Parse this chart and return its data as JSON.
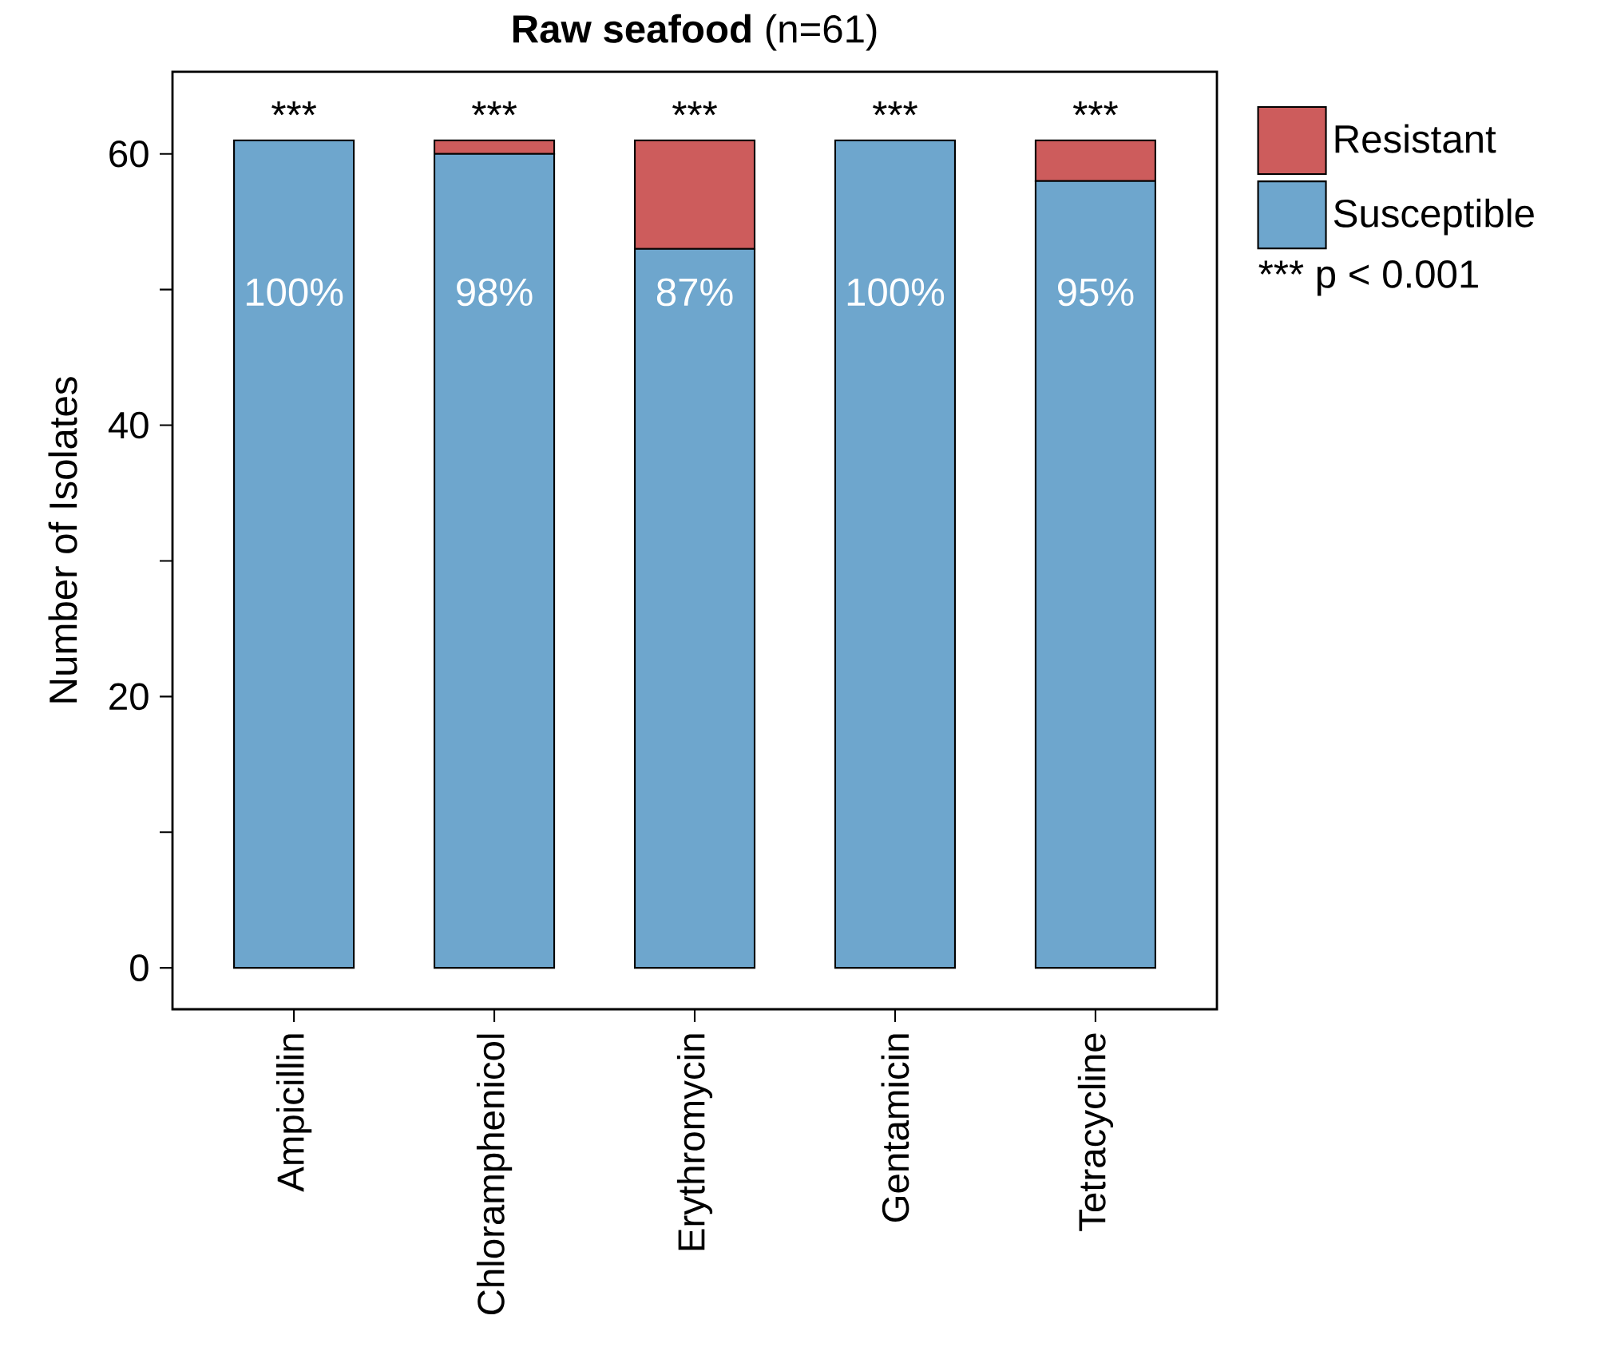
{
  "chart_data": {
    "type": "bar",
    "stacked": true,
    "title": "**Raw seafood**  (n=61)",
    "ylabel": "Number of Isolates",
    "categories": [
      "Ampicillin",
      "Chloramphenicol",
      "Erythromycin",
      "Gentamicin",
      "Tetracycline"
    ],
    "series": [
      {
        "name": "Susceptible",
        "color": "#6ea6cd",
        "values": [
          61,
          60,
          53,
          61,
          58
        ]
      },
      {
        "name": "Resistant",
        "color": "#cd5c5c",
        "values": [
          0,
          1,
          8,
          0,
          3
        ]
      }
    ],
    "ylim": [
      -3.05,
      66.05
    ],
    "yticks": [
      0,
      {
        "value": 10,
        "label": null
      },
      20,
      {
        "value": 30,
        "label": null
      },
      40,
      {
        "value": 50,
        "label": null
      },
      60
    ],
    "legend": "right",
    "grid": false,
    "annotations": [
      "***",
      "***",
      "***",
      "***",
      "***",
      "100%",
      "98%",
      "87%",
      "100%",
      "95%",
      "***  p < 0.001"
    ]
  }
}
